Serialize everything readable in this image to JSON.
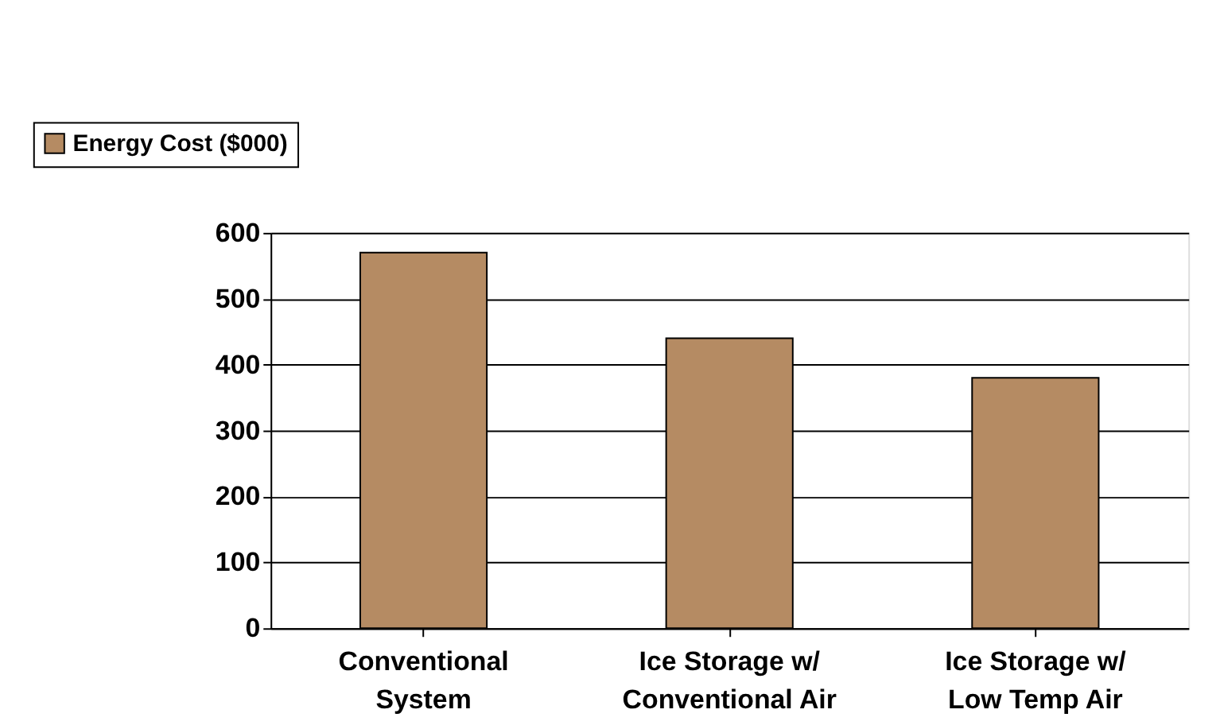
{
  "chart_data": {
    "type": "bar",
    "categories": [
      "Conventional System",
      "Ice Storage w/ Conventional Air",
      "Ice Storage w/ Low Temp Air"
    ],
    "series": [
      {
        "name": "Energy Cost ($000)",
        "color": "#b58b63",
        "values": [
          570,
          440,
          380
        ]
      }
    ],
    "ylim": [
      0,
      600
    ],
    "yticks": [
      0,
      100,
      200,
      300,
      400,
      500,
      600
    ],
    "grid": "y",
    "legend": "top left"
  }
}
